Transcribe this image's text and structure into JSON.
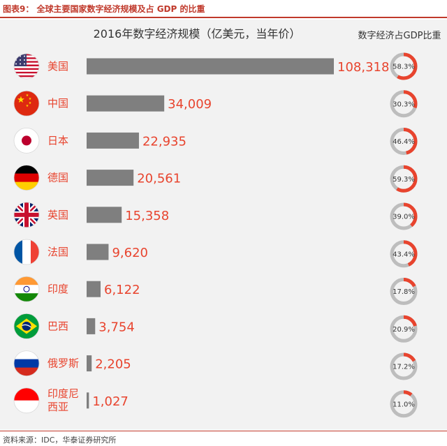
{
  "figure_title": "图表9：  全球主要国家数字经济规模及占 GDP 的比重",
  "source": "资料来源：IDC，华泰证券研究所",
  "colors": {
    "bar": "#7f7f7f",
    "accent": "#e8442e",
    "ring_track": "#bdbdbd"
  },
  "chart_data": {
    "type": "bar",
    "orientation": "horizontal",
    "title": "2016年数字经济规模（亿美元，当年价）",
    "share_header": "数字经济占GDP比重",
    "categories": [
      "美国",
      "中国",
      "日本",
      "德国",
      "英国",
      "法国",
      "印度",
      "巴西",
      "俄罗斯",
      "印度尼西亚"
    ],
    "category_lines": [
      [
        "美国"
      ],
      [
        "中国"
      ],
      [
        "日本"
      ],
      [
        "德国"
      ],
      [
        "英国"
      ],
      [
        "法国"
      ],
      [
        "印度"
      ],
      [
        "巴西"
      ],
      [
        "俄罗斯"
      ],
      [
        "印度尼",
        "西亚"
      ]
    ],
    "flags": [
      "us-flag-icon",
      "china-flag-icon",
      "japan-flag-icon",
      "germany-flag-icon",
      "uk-flag-icon",
      "france-flag-icon",
      "india-flag-icon",
      "brazil-flag-icon",
      "russia-flag-icon",
      "indonesia-flag-icon"
    ],
    "values": [
      108318,
      34009,
      22935,
      20561,
      15358,
      9620,
      6122,
      3754,
      2205,
      1027
    ],
    "value_labels": [
      "108,318",
      "34,009",
      "22,935",
      "20,561",
      "15,358",
      "9,620",
      "6,122",
      "3,754",
      "2,205",
      "1,027"
    ],
    "gdp_share_pct": [
      58.3,
      30.3,
      46.4,
      59.3,
      39.0,
      43.4,
      17.8,
      20.9,
      17.2,
      11.0
    ],
    "gdp_share_labels": [
      "58.3%",
      "30.3%",
      "46.4%",
      "59.3%",
      "39.0%",
      "43.4%",
      "17.8%",
      "20.9%",
      "17.2%",
      "11.0%"
    ]
  }
}
